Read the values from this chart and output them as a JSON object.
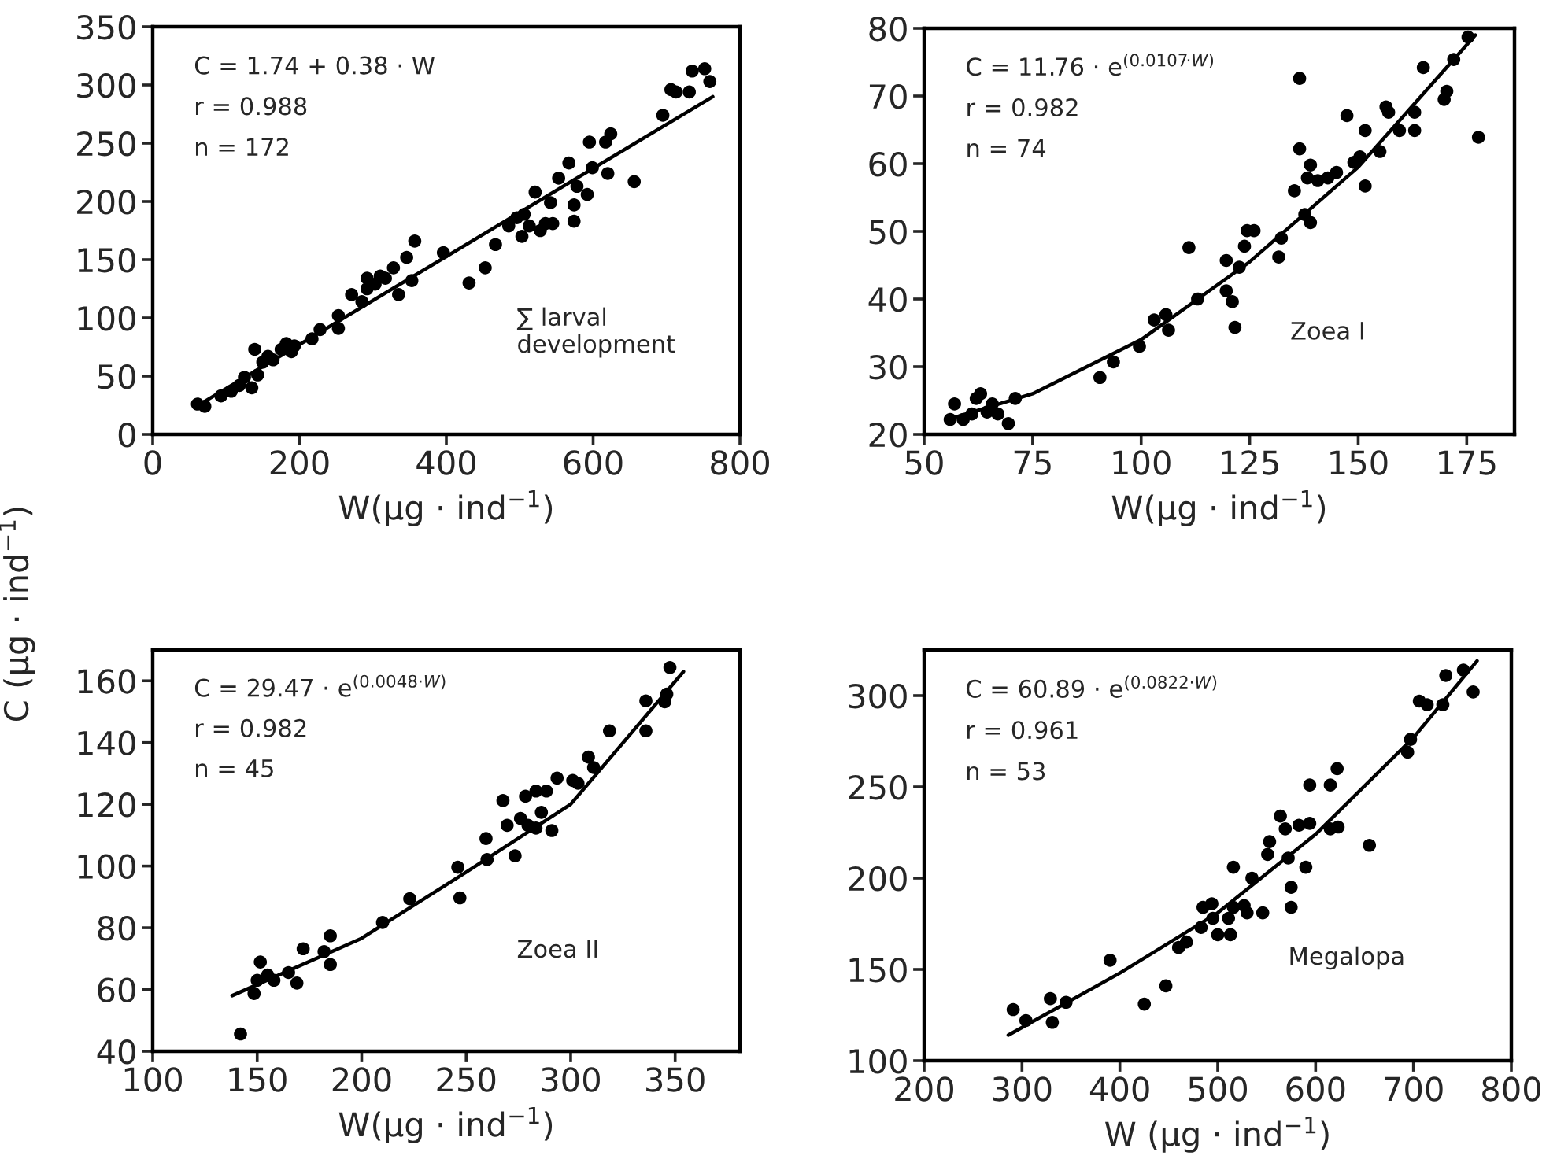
{
  "chart_data": [
    {
      "type": "scatter",
      "xlabel": "W(µg · ind$^{−1}$)",
      "ylabel": "C (µg · ind$^{−1}$)",
      "xlim": [
        0,
        800
      ],
      "xticks": [
        0,
        200,
        400,
        600,
        800
      ],
      "ylim": [
        0,
        350
      ],
      "yticks": [
        0,
        50,
        100,
        150,
        200,
        250,
        300,
        350
      ],
      "grid": false,
      "legend": false,
      "annotations": [
        "C = 1.74 + 0.38 · W",
        "r = 0.988",
        "n = 172",
        "∑ larval\ndevelopment"
      ],
      "series": [
        {
          "marker": "circle",
          "color": "#000000",
          "x": [
            61,
            71,
            93,
            107,
            118,
            125,
            135,
            143,
            139,
            150,
            157,
            164,
            175,
            182,
            189,
            193,
            217,
            228,
            253,
            253,
            271,
            285,
            292,
            292,
            303,
            310,
            317,
            328,
            335,
            346,
            357,
            353,
            396,
            431,
            453,
            467,
            485,
            496,
            503,
            506,
            513,
            521,
            528,
            535,
            545,
            542,
            553,
            567,
            574,
            574,
            578,
            592,
            595,
            599,
            617,
            624,
            620,
            656,
            695,
            706,
            713,
            731,
            735,
            752,
            759
          ],
          "values": [
            26,
            24,
            33,
            37,
            42,
            49,
            40,
            51,
            73,
            62,
            67,
            64,
            73,
            78,
            71,
            76,
            82,
            90,
            91,
            102,
            120,
            114,
            125,
            134,
            129,
            136,
            134,
            143,
            120,
            152,
            166,
            132,
            156,
            130,
            143,
            163,
            179,
            186,
            170,
            189,
            179,
            208,
            175,
            181,
            181,
            199,
            220,
            233,
            183,
            197,
            213,
            206,
            251,
            229,
            251,
            258,
            224,
            217,
            274,
            296,
            294,
            294,
            312,
            314,
            303
          ]
        },
        {
          "type": "line",
          "marker": "none",
          "line_style": "solid",
          "color": "#000000",
          "x": [
            70,
            763
          ],
          "values": [
            28,
            290
          ]
        }
      ]
    },
    {
      "type": "scatter",
      "xlabel": "W(µg · ind$^{−1}$)",
      "xlim": [
        50,
        186
      ],
      "xticks": [
        50,
        75,
        100,
        125,
        150,
        175
      ],
      "ylim": [
        20,
        80
      ],
      "yticks": [
        20,
        30,
        40,
        50,
        60,
        70,
        80
      ],
      "grid": false,
      "legend": false,
      "annotations": [
        "C = 11.76 · e$^{(0.0107·W)}$",
        "r = 0.982",
        "n = 74",
        "Zoea I"
      ],
      "series": [
        {
          "marker": "circle",
          "color": "#000000",
          "x": [
            56,
            57,
            59,
            61,
            62,
            63,
            64.5,
            65.7,
            67,
            69.4,
            71,
            90.5,
            93.6,
            99.6,
            103,
            105.7,
            106.3,
            111,
            113,
            119.6,
            119.6,
            121,
            121.6,
            122.6,
            123.8,
            124.4,
            126,
            131.7,
            132.3,
            135.3,
            136.5,
            136.5,
            137.7,
            139,
            139,
            138.3,
            140.7,
            143,
            145,
            147.4,
            149,
            150.4,
            151.6,
            151.6,
            155,
            156.4,
            157,
            159.5,
            163,
            163,
            165,
            169.8,
            170.4,
            172,
            174.6,
            175.3,
            177.7
          ],
          "values": [
            22.2,
            24.5,
            22.2,
            23,
            25.3,
            26,
            23.3,
            24.5,
            23,
            21.6,
            25.3,
            28.4,
            30.7,
            33,
            36.9,
            37.7,
            35.4,
            47.6,
            40,
            45.7,
            41.2,
            39.6,
            35.8,
            44.7,
            47.8,
            50.1,
            50.1,
            46.2,
            49,
            56,
            62.2,
            72.6,
            52.5,
            51.3,
            59.8,
            57.9,
            57.5,
            57.9,
            58.7,
            67.1,
            60.2,
            61,
            56.7,
            64.9,
            61.8,
            68.4,
            67.6,
            64.9,
            64.9,
            67.6,
            74.2,
            69.5,
            70.7,
            75.4,
            null,
            78.7,
            63.9
          ]
        },
        {
          "type": "line",
          "marker": "none",
          "line_style": "solid",
          "color": "#000000",
          "x": [
            56,
            75,
            100,
            125,
            150,
            177
          ],
          "values": [
            22.3,
            26,
            34,
            45.5,
            59.5,
            79
          ]
        }
      ]
    },
    {
      "type": "scatter",
      "xlabel": "W(µg · ind$^{−1}$)",
      "xlim": [
        100,
        381
      ],
      "xticks": [
        100,
        150,
        200,
        250,
        300,
        350
      ],
      "ylim": [
        40,
        170
      ],
      "yticks": [
        40,
        60,
        80,
        100,
        120,
        140,
        160
      ],
      "grid": false,
      "legend": false,
      "annotations": [
        "C = 29.47 · e$^{(0.0048·W)}$",
        "r = 0.982",
        "n = 45",
        "Zoea II"
      ],
      "series": [
        {
          "marker": "circle",
          "color": "#000000",
          "x": [
            142,
            148.5,
            150,
            151.5,
            155,
            158,
            165,
            169,
            172,
            182,
            185,
            185,
            210,
            223,
            246,
            247,
            259.5,
            260,
            267.6,
            269.6,
            273.4,
            276,
            278.4,
            279.6,
            283.4,
            283.4,
            286,
            288.4,
            291,
            293.5,
            301,
            303.5,
            308.5,
            311,
            318.6,
            336,
            336,
            345,
            346,
            347.5
          ],
          "values": [
            45.6,
            58.7,
            63,
            68.9,
            64.7,
            63,
            65.5,
            62.1,
            73.2,
            72.3,
            77.4,
            68.1,
            81.7,
            89.4,
            99.6,
            89.7,
            108.9,
            102.1,
            121.2,
            113.2,
            103.3,
            115.4,
            122.6,
            113.2,
            124.3,
            112.3,
            117.4,
            124.3,
            111.5,
            128.5,
            127.7,
            126.8,
            135.3,
            131.9,
            143.8,
            153.5,
            143.8,
            153.2,
            155.7,
            164.3
          ]
        },
        {
          "type": "line",
          "marker": "none",
          "line_style": "solid",
          "color": "#000000",
          "x": [
            138,
            200,
            250,
            300,
            354
          ],
          "values": [
            58,
            76.6,
            98,
            120,
            163
          ]
        }
      ]
    },
    {
      "type": "scatter",
      "xlabel": "W (µg · ind$^{−1}$)",
      "xlim": [
        200,
        800
      ],
      "xticks": [
        200,
        300,
        400,
        500,
        600,
        700,
        800
      ],
      "ylim": [
        100,
        325
      ],
      "yticks": [
        100,
        150,
        200,
        250,
        300
      ],
      "grid": false,
      "legend": false,
      "annotations": [
        "C = 60.89 · e$^{(0.0822·W)}$",
        "r = 0.961",
        "n = 53",
        "Megalopa"
      ],
      "series": [
        {
          "marker": "circle",
          "color": "#000000",
          "x": [
            291,
            304,
            329,
            331,
            345,
            390,
            425,
            447,
            460,
            468,
            483,
            485,
            494,
            495,
            500,
            513,
            511,
            516,
            516,
            527,
            530,
            535,
            546,
            551,
            553,
            564,
            569,
            572,
            575,
            575,
            583,
            590,
            594,
            594,
            615,
            615,
            622,
            623,
            655,
            694,
            697,
            706,
            714,
            730,
            733,
            751,
            761
          ],
          "values": [
            128,
            122,
            134,
            121,
            132,
            155,
            131,
            141,
            162,
            165,
            173,
            184,
            186,
            178,
            169,
            169,
            178,
            184,
            206,
            185,
            181,
            200,
            181,
            213,
            220,
            234,
            227,
            211,
            195,
            184,
            229,
            206,
            230,
            251,
            251,
            227,
            260,
            228,
            218,
            269,
            276,
            297,
            295,
            295,
            311,
            314,
            302
          ]
        },
        {
          "type": "line",
          "marker": "none",
          "line_style": "solid",
          "color": "#000000",
          "x": [
            286,
            400,
            500,
            600,
            700,
            765
          ],
          "values": [
            114,
            148,
            181,
            224,
            277,
            319
          ]
        }
      ]
    }
  ]
}
